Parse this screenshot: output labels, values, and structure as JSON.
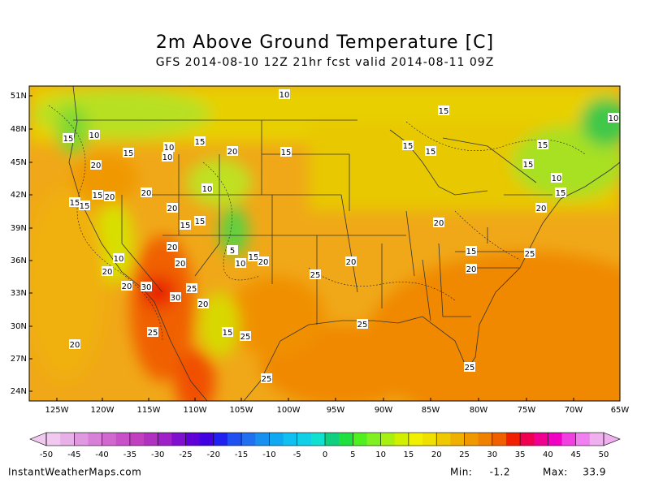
{
  "title": "2m Above Ground Temperature [C]",
  "subtitle": "GFS 2014-08-10 12Z 21hr fcst valid 2014-08-11 09Z",
  "map": {
    "lat_labels": [
      "51N",
      "48N",
      "45N",
      "42N",
      "39N",
      "36N",
      "33N",
      "30N",
      "27N",
      "24N"
    ],
    "lon_labels": [
      "125W",
      "120W",
      "115W",
      "110W",
      "105W",
      "100W",
      "95W",
      "90W",
      "85W",
      "80W",
      "75W",
      "70W",
      "65W"
    ],
    "contour_labels": [
      10,
      15,
      10,
      10,
      15,
      10,
      15,
      20,
      15,
      15,
      10,
      15,
      15,
      15,
      20,
      15,
      10,
      10,
      20,
      15,
      20,
      15,
      15,
      15,
      20,
      20,
      15,
      15,
      20,
      20,
      5,
      15,
      25,
      10,
      15,
      20,
      10,
      20,
      20,
      20,
      20,
      25,
      20,
      30,
      25,
      30,
      20,
      25,
      25,
      15,
      25,
      20,
      25,
      25
    ]
  },
  "colorbar": {
    "ticks": [
      -50,
      -45,
      -40,
      -35,
      -30,
      -25,
      -20,
      -15,
      -10,
      -5,
      0,
      5,
      10,
      15,
      20,
      25,
      30,
      35,
      40,
      45,
      50
    ],
    "colors": [
      "#f0c8f0",
      "#e8b0e8",
      "#e098e0",
      "#d880d8",
      "#d068d0",
      "#c850c8",
      "#c040c0",
      "#b030c0",
      "#a020c8",
      "#8010d0",
      "#6000d8",
      "#4000e0",
      "#2020f0",
      "#2050f0",
      "#2070f0",
      "#1890f0",
      "#10a8f0",
      "#10c0f0",
      "#10d0e8",
      "#10e0d0",
      "#10d080",
      "#20e040",
      "#50f020",
      "#80f020",
      "#a8f010",
      "#d0f000",
      "#f0f000",
      "#f0e000",
      "#f0c800",
      "#f0b000",
      "#f09800",
      "#f08000",
      "#f06000",
      "#f02000",
      "#f00050",
      "#f00090",
      "#f000c0",
      "#f040e0",
      "#f080f0",
      "#f0b0f0"
    ]
  },
  "footer": {
    "source": "InstantWeatherMaps.com",
    "min_label": "Min:",
    "min": -1.2,
    "max_label": "Max:",
    "max": 33.9
  }
}
